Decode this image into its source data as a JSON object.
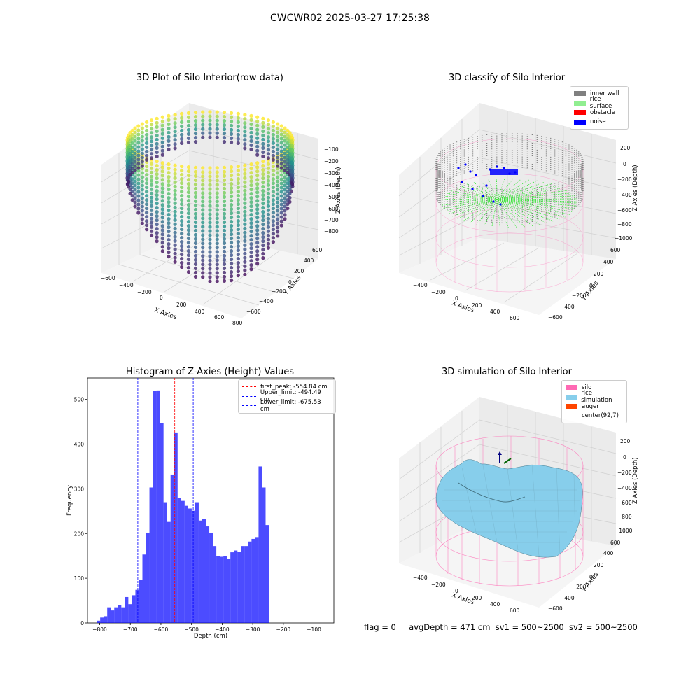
{
  "figure": {
    "suptitle": "CWCWR02 2025-03-27 17:25:38",
    "footer": {
      "flag": "flag = 0",
      "avg_depth": "avgDepth = 471 cm",
      "sv1": "sv1 = 500~2500",
      "sv2": "sv2 = 500~2500"
    }
  },
  "panels": {
    "raw": {
      "title": "3D Plot of Silo Interior(row data)",
      "xlabel": "X Axies",
      "ylabel": "Y Axies",
      "zlabel": "Z Axies (Depth)",
      "xticks": [
        "−600",
        "−400",
        "−200",
        "0",
        "200",
        "400",
        "600",
        "800"
      ],
      "yticks": [
        "−600",
        "−400",
        "−200",
        "0",
        "200",
        "400",
        "600"
      ],
      "zticks": [
        "−100",
        "−200",
        "−300",
        "−400",
        "−500",
        "−600",
        "−700",
        "−800"
      ]
    },
    "classify": {
      "title": "3D classify of Silo Interior",
      "xlabel": "X Axies",
      "ylabel": "Y Axies",
      "zlabel": "Z Axies (Depth)",
      "xticks": [
        "−400",
        "−200",
        "0",
        "200",
        "400",
        "600"
      ],
      "yticks": [
        "−600",
        "−400",
        "−200",
        "0",
        "200",
        "400",
        "600"
      ],
      "zticks": [
        "200",
        "0",
        "−200",
        "−400",
        "−600",
        "−800",
        "−1000"
      ],
      "legend": [
        {
          "label": "inner wall",
          "color": "#808080"
        },
        {
          "label": "rice surface",
          "color": "#90ee90"
        },
        {
          "label": "obstacle",
          "color": "#ff0000"
        },
        {
          "label": "noise",
          "color": "#0000ff"
        }
      ]
    },
    "simulation": {
      "title": "3D simulation of Silo Interior",
      "xlabel": "X Axies",
      "ylabel": "Y Axies",
      "zlabel": "Z Axies (Depth)",
      "xticks": [
        "−400",
        "−200",
        "0",
        "200",
        "400",
        "600"
      ],
      "yticks": [
        "−600",
        "−400",
        "−200",
        "0",
        "200",
        "400",
        "600"
      ],
      "zticks": [
        "200",
        "0",
        "−200",
        "−400",
        "−600",
        "−800",
        "−1000"
      ],
      "legend": [
        {
          "label": "silo",
          "color": "#ff69b4"
        },
        {
          "label": "rice simulation",
          "color": "#87ceeb"
        },
        {
          "label": "auger",
          "color": "#ff4500"
        },
        {
          "label": "center(92,7)",
          "color": ""
        }
      ]
    }
  },
  "chart_data": {
    "type": "bar",
    "title": "Histogram of Z-Axies (Height) Values",
    "xlabel": "Depth (cm)",
    "ylabel": "Frequency",
    "xlim": [
      -840,
      -35
    ],
    "ylim": [
      0,
      548
    ],
    "xticks": [
      -800,
      -700,
      -600,
      -500,
      -400,
      -300,
      -200,
      -100
    ],
    "yticks": [
      0,
      100,
      200,
      300,
      400,
      500
    ],
    "bar_color": "#0000ff",
    "bin_start": -810,
    "bin_width": 11.5,
    "values": [
      5,
      12,
      15,
      35,
      28,
      35,
      40,
      35,
      58,
      42,
      62,
      74,
      96,
      153,
      202,
      303,
      519,
      520,
      447,
      270,
      226,
      332,
      426,
      280,
      273,
      262,
      256,
      251,
      270,
      229,
      233,
      216,
      202,
      172,
      150,
      148,
      150,
      143,
      158,
      162,
      159,
      172,
      172,
      182,
      188,
      192,
      350,
      303,
      219
    ],
    "vlines": [
      {
        "label": "first_peak: -554.84 cm",
        "x": -554.84,
        "color": "#ff0000"
      },
      {
        "label": "Upper_limit: -494.49 cm",
        "x": -494.49,
        "color": "#0000ff"
      },
      {
        "label": "Lower_limit: -675.53 cm",
        "x": -675.53,
        "color": "#0000ff"
      }
    ]
  }
}
